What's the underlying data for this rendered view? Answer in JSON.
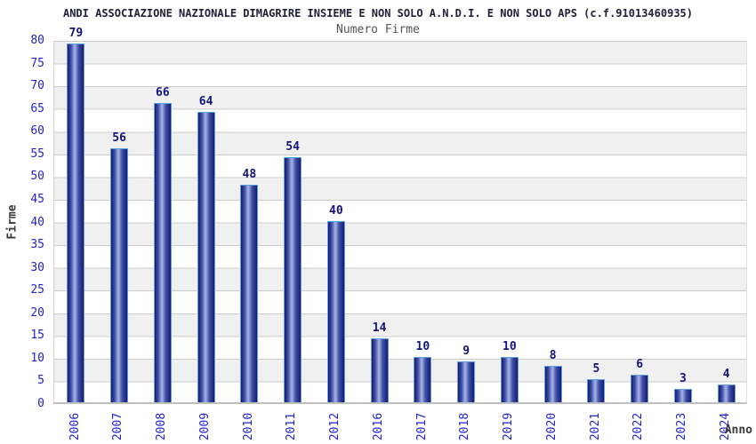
{
  "chart_data": {
    "type": "bar",
    "title": "ANDI ASSOCIAZIONE NAZIONALE DIMAGRIRE INSIEME E NON SOLO A.N.D.I. E NON SOLO APS (c.f.91013460935)",
    "subtitle": "Numero Firme",
    "xlabel": "Anno",
    "ylabel": "Firme",
    "categories": [
      "2006",
      "2007",
      "2008",
      "2009",
      "2010",
      "2011",
      "2012",
      "2016",
      "2017",
      "2018",
      "2019",
      "2020",
      "2021",
      "2022",
      "2023",
      "2024"
    ],
    "values": [
      79,
      56,
      66,
      64,
      48,
      54,
      40,
      14,
      10,
      9,
      10,
      8,
      5,
      6,
      3,
      4
    ],
    "ylim": [
      0,
      80
    ],
    "ytick_step": 5,
    "grid": "horizontal-bands",
    "legend_position": "none",
    "colors": {
      "background": "#ffffff",
      "title": "#20203a",
      "subtitle": "#555555",
      "axis_label": "#3a3a3a",
      "tick_label": "#2222cc",
      "value_label": "#14147d",
      "bar_edge": "#181875",
      "bar_mid": "#3f51a5",
      "bar_highlight": "#a9b5ea",
      "bar_border": "#5ca0e0",
      "band_gray": "#f0f0f0",
      "band_white": "#ffffff",
      "gridline": "#cccccc"
    }
  }
}
